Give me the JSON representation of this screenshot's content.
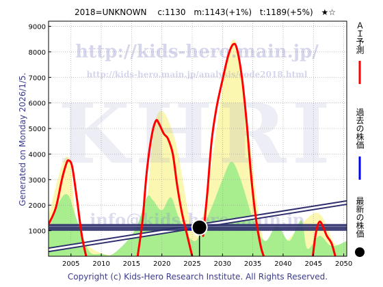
{
  "header": {
    "code": "2018=UNKNOWN",
    "c": "c:1130",
    "m": "m:1143(+1%)",
    "t": "t:1189(+5%)",
    "stars": "★☆"
  },
  "side_text": "Generated on Monday 2026/1/5.",
  "footer": "Copyright (c) Kids-Hero Research Institute. All Rights Reserved.",
  "watermarks": {
    "url": "http://kids-hero.main.jp/",
    "analysis_url": "http://kids-hero.main.jp/analysis/code2018.html",
    "logo": "KHRI",
    "email": "info@kids-hero.main.jp"
  },
  "legend": [
    {
      "label": "ＡＩ予測",
      "color": "#ff0000",
      "kind": "line"
    },
    {
      "label": "過去の株価",
      "color": "#0000ff",
      "kind": "line"
    },
    {
      "label": "最新の株価",
      "color": "#000000",
      "kind": "dot"
    }
  ],
  "chart_data": {
    "type": "line",
    "x_ticks": [
      "2005",
      "2010",
      "2015",
      "2020",
      "2025",
      "2030",
      "2035",
      "2040",
      "2045",
      "2050"
    ],
    "y_ticks": [
      "1000",
      "2000",
      "3000",
      "4000",
      "5000",
      "6000",
      "7000",
      "8000",
      "9000"
    ],
    "xlim": [
      2001.3,
      2050.5
    ],
    "ylim": [
      0,
      9200
    ],
    "grid": true,
    "series": [
      {
        "name": "ＡＩ予測",
        "color": "#ff0000",
        "segments": [
          [
            [
              2001.3,
              1250
            ],
            [
              2002.5,
              1900
            ],
            [
              2003.5,
              3000
            ],
            [
              2004.2,
              3600
            ],
            [
              2004.6,
              3750
            ],
            [
              2005.2,
              3500
            ],
            [
              2006,
              2200
            ],
            [
              2006.8,
              800
            ],
            [
              2007.5,
              0
            ]
          ],
          [
            [
              2016,
              0
            ],
            [
              2016.8,
              1400
            ],
            [
              2017.5,
              3300
            ],
            [
              2018.3,
              4700
            ],
            [
              2019,
              5300
            ],
            [
              2019.5,
              5200
            ],
            [
              2020.3,
              4800
            ],
            [
              2021,
              4600
            ],
            [
              2021.8,
              4000
            ],
            [
              2022.5,
              2800
            ],
            [
              2023.3,
              1700
            ],
            [
              2024.2,
              800
            ],
            [
              2025,
              0
            ]
          ],
          [
            [
              2026.8,
              800
            ],
            [
              2027.5,
              2500
            ],
            [
              2028.2,
              4500
            ],
            [
              2029,
              5800
            ],
            [
              2030,
              6900
            ],
            [
              2031,
              7900
            ],
            [
              2031.8,
              8300
            ],
            [
              2032.4,
              8100
            ],
            [
              2033.2,
              7000
            ],
            [
              2034,
              5200
            ],
            [
              2034.7,
              3200
            ],
            [
              2035.5,
              1500
            ],
            [
              2036.3,
              400
            ],
            [
              2036.8,
              0
            ]
          ],
          [
            [
              2044.9,
              0
            ],
            [
              2045.4,
              900
            ],
            [
              2046,
              1350
            ],
            [
              2046.6,
              1150
            ],
            [
              2047.2,
              800
            ],
            [
              2048,
              500
            ],
            [
              2048.6,
              0
            ]
          ]
        ]
      },
      {
        "name": "過去の株価",
        "color": "#0000ff",
        "points": [
          [
            2024.5,
            1050
          ],
          [
            2025.5,
            1110
          ],
          [
            2026.2,
            1130
          ]
        ]
      }
    ],
    "bands": {
      "yellow_upper": [
        [
          2001.3,
          1600
        ],
        [
          2004.5,
          3900
        ],
        [
          2007,
          600
        ],
        [
          2016,
          500
        ],
        [
          2019,
          5400
        ],
        [
          2022,
          4700
        ],
        [
          2025,
          1100
        ],
        [
          2027,
          1800
        ],
        [
          2031.5,
          8400
        ],
        [
          2034,
          5300
        ],
        [
          2036.8,
          600
        ],
        [
          2040,
          500
        ],
        [
          2045.5,
          1700
        ],
        [
          2048.5,
          500
        ],
        [
          2050.5,
          400
        ]
      ],
      "green_upper": [
        [
          2001.3,
          1000
        ],
        [
          2003,
          2100
        ],
        [
          2004.5,
          2400
        ],
        [
          2006,
          1400
        ],
        [
          2008,
          200
        ],
        [
          2010,
          100
        ],
        [
          2012,
          100
        ],
        [
          2015.5,
          1000
        ],
        [
          2017.5,
          2300
        ],
        [
          2018.5,
          2200
        ],
        [
          2020,
          1800
        ],
        [
          2021.5,
          2300
        ],
        [
          2023,
          1400
        ],
        [
          2025.5,
          600
        ],
        [
          2028,
          1800
        ],
        [
          2030,
          3000
        ],
        [
          2031.5,
          3700
        ],
        [
          2033,
          3000
        ],
        [
          2035,
          1500
        ],
        [
          2037,
          600
        ],
        [
          2039,
          1200
        ],
        [
          2041,
          600
        ],
        [
          2043,
          1400
        ],
        [
          2044,
          300
        ],
        [
          2046,
          800
        ],
        [
          2048,
          400
        ],
        [
          2050.5,
          600
        ]
      ]
    },
    "trend": {
      "start": [
        2001.3,
        250
      ],
      "end": [
        2050.5,
        2100
      ]
    },
    "current_price": {
      "x": 2026.2,
      "y": 1130
    },
    "level_band": 1130
  }
}
